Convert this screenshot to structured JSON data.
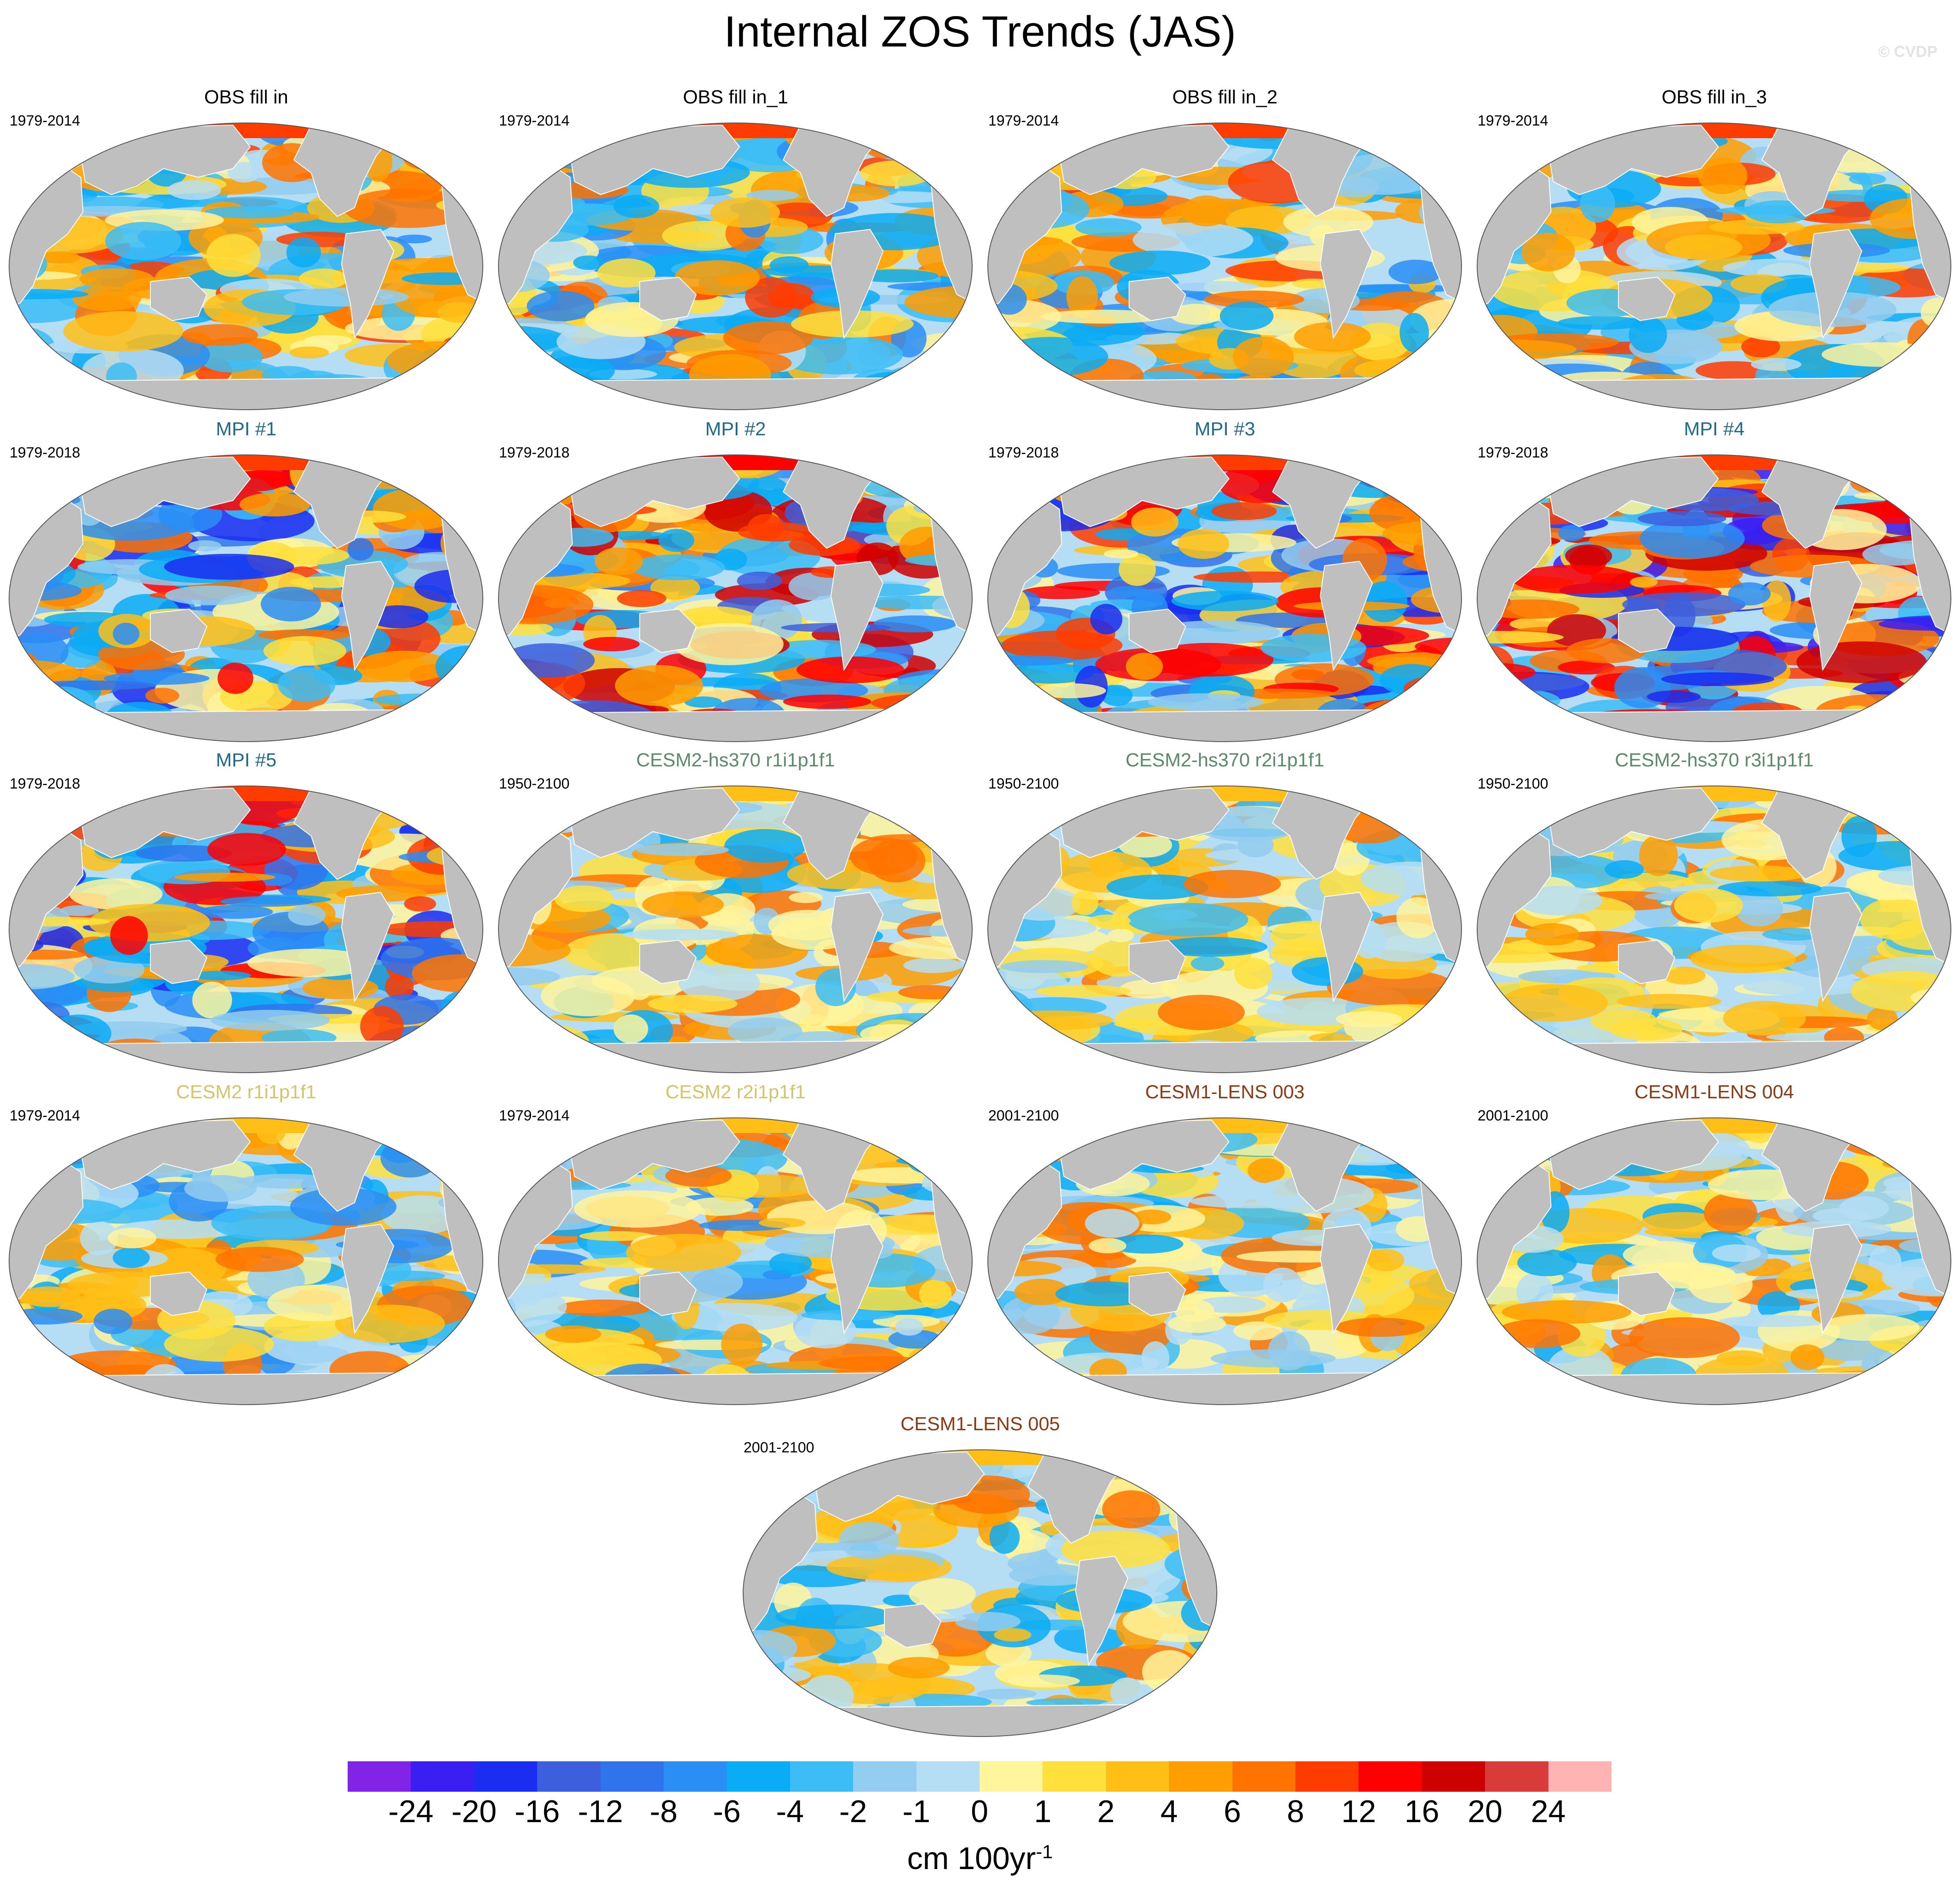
{
  "title": "Internal ZOS Trends (JAS)",
  "credit": "© CVDP",
  "colors": {
    "land": "#bfbfbf",
    "outline": "#555555"
  },
  "panels": [
    {
      "title": "OBS fill in",
      "period": "1979-2014",
      "title_color": "#000000",
      "pattern": "obs"
    },
    {
      "title": "OBS fill in_1",
      "period": "1979-2014",
      "title_color": "#000000",
      "pattern": "obs"
    },
    {
      "title": "OBS fill in_2",
      "period": "1979-2014",
      "title_color": "#000000",
      "pattern": "obs"
    },
    {
      "title": "OBS fill in_3",
      "period": "1979-2014",
      "title_color": "#000000",
      "pattern": "obs"
    },
    {
      "title": "MPI #1",
      "period": "1979-2018",
      "title_color": "#1e6b8a",
      "pattern": "mpi"
    },
    {
      "title": "MPI #2",
      "period": "1979-2018",
      "title_color": "#1e6b8a",
      "pattern": "mpi2"
    },
    {
      "title": "MPI #3",
      "period": "1979-2018",
      "title_color": "#1e6b8a",
      "pattern": "mpi"
    },
    {
      "title": "MPI #4",
      "period": "1979-2018",
      "title_color": "#1e6b8a",
      "pattern": "mpi4"
    },
    {
      "title": "MPI #5",
      "period": "1979-2018",
      "title_color": "#1e6b8a",
      "pattern": "mpi"
    },
    {
      "title": "CESM2-hs370 r1i1p1f1",
      "period": "1950-2100",
      "title_color": "#5c8a6b",
      "pattern": "cesm"
    },
    {
      "title": "CESM2-hs370 r2i1p1f1",
      "period": "1950-2100",
      "title_color": "#5c8a6b",
      "pattern": "cesm"
    },
    {
      "title": "CESM2-hs370 r3i1p1f1",
      "period": "1950-2100",
      "title_color": "#5c8a6b",
      "pattern": "cesm"
    },
    {
      "title": "CESM2 r1i1p1f1",
      "period": "1979-2014",
      "title_color": "#d4c46a",
      "pattern": "cesm2"
    },
    {
      "title": "CESM2 r2i1p1f1",
      "period": "1979-2014",
      "title_color": "#d4c46a",
      "pattern": "cesm2"
    },
    {
      "title": "CESM1-LENS 003",
      "period": "2001-2100",
      "title_color": "#8b3a14",
      "pattern": "lens"
    },
    {
      "title": "CESM1-LENS 004",
      "period": "2001-2100",
      "title_color": "#8b3a14",
      "pattern": "lens"
    },
    {
      "title": "CESM1-LENS 005",
      "period": "2001-2100",
      "title_color": "#8b3a14",
      "pattern": "lens"
    }
  ],
  "colorbar": {
    "units": "cm 100yr",
    "units_exp": "-1",
    "colors": [
      "#8224e8",
      "#3b1ef2",
      "#1a2df0",
      "#3d5fde",
      "#2f74ec",
      "#2a8ef4",
      "#0aacf5",
      "#3cbdf5",
      "#93cdef",
      "#b5def5",
      "#fff59c",
      "#ffe03d",
      "#ffbf17",
      "#ff9e00",
      "#ff7300",
      "#ff3c00",
      "#ff0000",
      "#cf0000",
      "#d93a3a",
      "#ffb3b3"
    ],
    "ticks": [
      "-24",
      "-20",
      "-16",
      "-12",
      "-8",
      "-6",
      "-4",
      "-2",
      "-1",
      "0",
      "1",
      "2",
      "4",
      "6",
      "8",
      "12",
      "16",
      "20",
      "24"
    ]
  }
}
